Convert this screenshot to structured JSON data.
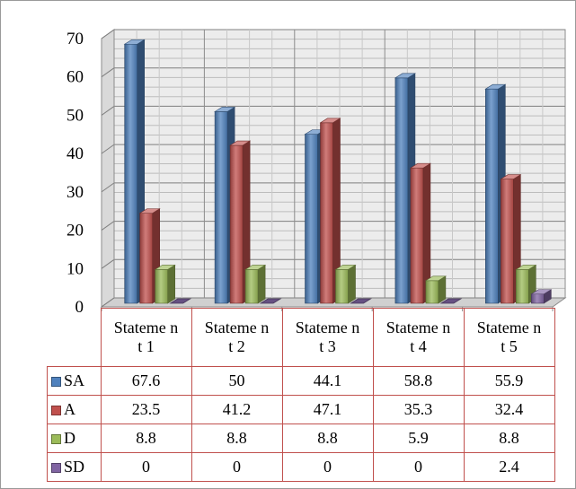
{
  "chart_data": {
    "type": "bar",
    "style": "3d-clustered-column",
    "categories": [
      "Statement 1",
      "Statement 2",
      "Statement 3",
      "Statement 4",
      "Statement 5"
    ],
    "category_display": [
      "Stateme nt 1",
      "Stateme nt 2",
      "Stateme nt 3",
      "Stateme nt 4",
      "Stateme nt 5"
    ],
    "series": [
      {
        "name": "SA",
        "color": "#4f81bd",
        "values": [
          67.6,
          50,
          44.1,
          58.8,
          55.9
        ]
      },
      {
        "name": "A",
        "color": "#c0504d",
        "values": [
          23.5,
          41.2,
          47.1,
          35.3,
          32.4
        ]
      },
      {
        "name": "D",
        "color": "#9bbb59",
        "values": [
          8.8,
          8.8,
          8.8,
          5.9,
          8.8
        ]
      },
      {
        "name": "SD",
        "color": "#8064a2",
        "values": [
          0,
          0,
          0,
          0,
          2.4
        ]
      }
    ],
    "value_labels": [
      [
        "67.6",
        "50",
        "44.1",
        "58.8",
        "55.9"
      ],
      [
        "23.5",
        "41.2",
        "47.1",
        "35.3",
        "32.4"
      ],
      [
        "8.8",
        "8.8",
        "8.8",
        "5.9",
        "8.8"
      ],
      [
        "0",
        "0",
        "0",
        "0",
        "2.4"
      ]
    ],
    "yticks": [
      "0",
      "10",
      "20",
      "30",
      "40",
      "50",
      "60",
      "70"
    ],
    "ylim": [
      0,
      70
    ],
    "ystep": 10,
    "grid": true,
    "legend": "data-table"
  }
}
